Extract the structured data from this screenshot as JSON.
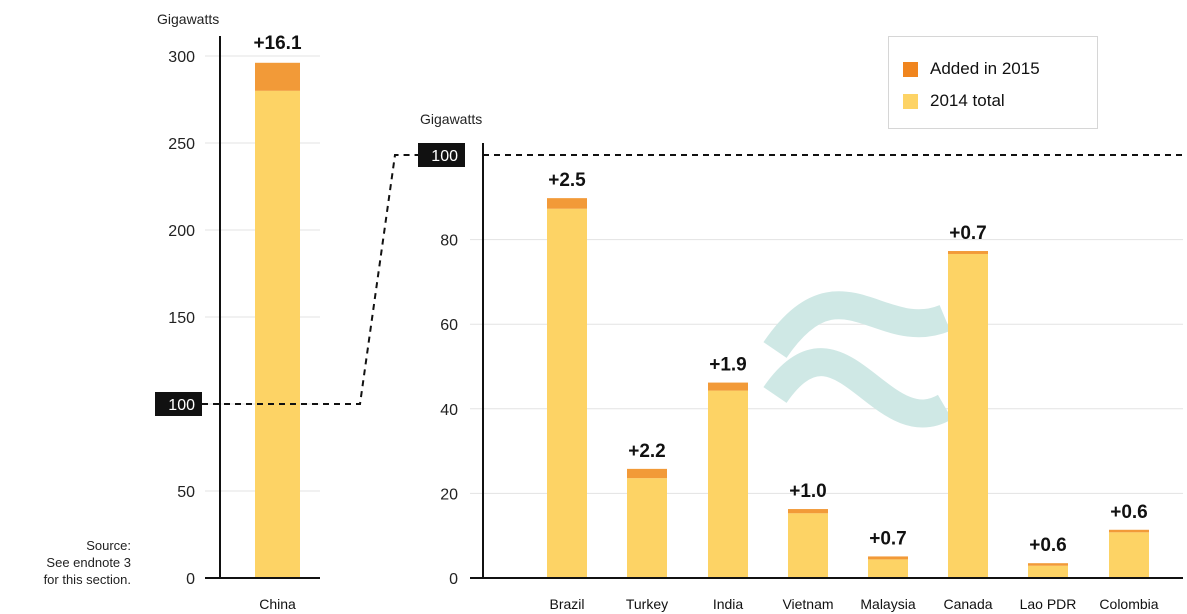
{
  "colors": {
    "added": "#F29A38",
    "base": "#FDD365",
    "squiggle": "#CFE8E5",
    "highlight": "#111111"
  },
  "chart_data": [
    {
      "type": "bar",
      "stacked": true,
      "ylabel": "Gigawatts",
      "ylim": [
        0,
        300
      ],
      "yticks": [
        0,
        50,
        100,
        150,
        200,
        250,
        300
      ],
      "highlight_tick": "100",
      "categories": [
        "China"
      ],
      "series": [
        {
          "name": "2014 total",
          "values": [
            280
          ]
        },
        {
          "name": "Added in 2015",
          "values": [
            16.1
          ]
        }
      ],
      "labels": [
        "+16.1"
      ]
    },
    {
      "type": "bar",
      "stacked": true,
      "ylabel": "Gigawatts",
      "ylim": [
        0,
        100
      ],
      "yticks": [
        0,
        20,
        40,
        60,
        80,
        100
      ],
      "highlight_tick": "100",
      "axis_break": true,
      "categories": [
        "Brazil",
        "Turkey",
        "India",
        "Vietnam",
        "Malaysia",
        "Canada",
        "Lao PDR",
        "Colombia"
      ],
      "series": [
        {
          "name": "2014 total",
          "values": [
            87.3,
            23.6,
            44.3,
            15.3,
            4.4,
            76.6,
            2.9,
            10.8
          ]
        },
        {
          "name": "Added in 2015",
          "values": [
            2.5,
            2.2,
            1.9,
            1.0,
            0.7,
            0.7,
            0.6,
            0.6
          ]
        }
      ],
      "labels": [
        "+2.5",
        "+2.2",
        "+1.9",
        "+1.0",
        "+0.7",
        "+0.7",
        "+0.6",
        "+0.6"
      ]
    }
  ],
  "legend": {
    "added_label": "Added in 2015",
    "base_label": "2014 total"
  },
  "source": {
    "line1": "Source:",
    "line2": "See endnote 3",
    "line3": "for this section."
  }
}
